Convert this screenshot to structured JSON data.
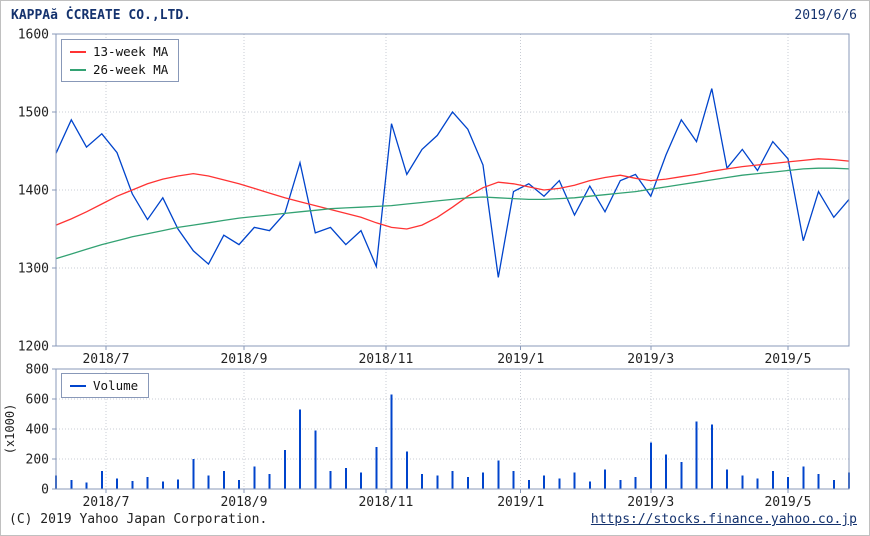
{
  "header": {
    "title": "KAPPAă ĊCREATE CO.,LTD.",
    "date": "2019/6/6"
  },
  "footer": {
    "copyright": "(C) 2019 Yahoo Japan Corporation.",
    "link": "https://stocks.finance.yahoo.co.jp"
  },
  "colors": {
    "price": "#0044cc",
    "ma13": "#ff3333",
    "ma26": "#33a273",
    "volume": "#0044cc",
    "axis": "#8898b8",
    "grid": "#c8ccd4",
    "label": "#222222",
    "title": "#14326e",
    "link": "#14326e"
  },
  "chart_data": [
    {
      "type": "line",
      "ylim": [
        1200,
        1600
      ],
      "yticks": [
        1200,
        1300,
        1400,
        1500,
        1600
      ],
      "grid": true,
      "legend_position": "top-left",
      "xticks": [
        {
          "label": "2018/7",
          "pos": 0.063
        },
        {
          "label": "2018/9",
          "pos": 0.237
        },
        {
          "label": "2018/11",
          "pos": 0.416
        },
        {
          "label": "2019/1",
          "pos": 0.586
        },
        {
          "label": "2019/3",
          "pos": 0.75
        },
        {
          "label": "2019/5",
          "pos": 0.923
        }
      ],
      "legend": [
        {
          "label": "13-week MA",
          "color": "#ff3333"
        },
        {
          "label": "26-week MA",
          "color": "#33a273"
        }
      ],
      "series": [
        {
          "name": "Close",
          "color": "#0044cc",
          "values": [
            1447,
            1490,
            1455,
            1472,
            1448,
            1395,
            1362,
            1390,
            1350,
            1322,
            1305,
            1342,
            1330,
            1352,
            1348,
            1370,
            1435,
            1345,
            1352,
            1330,
            1348,
            1302,
            1485,
            1420,
            1452,
            1470,
            1500,
            1478,
            1432,
            1288,
            1398,
            1408,
            1392,
            1412,
            1368,
            1405,
            1372,
            1412,
            1420,
            1392,
            1445,
            1490,
            1462,
            1530,
            1428,
            1452,
            1425,
            1462,
            1440,
            1335,
            1398,
            1365,
            1388
          ]
        },
        {
          "name": "13-week MA",
          "color": "#ff3333",
          "values": [
            1355,
            1363,
            1372,
            1382,
            1392,
            1400,
            1408,
            1414,
            1418,
            1421,
            1418,
            1413,
            1408,
            1402,
            1396,
            1390,
            1385,
            1380,
            1375,
            1370,
            1365,
            1358,
            1352,
            1350,
            1355,
            1365,
            1378,
            1392,
            1403,
            1410,
            1408,
            1404,
            1400,
            1402,
            1406,
            1412,
            1416,
            1419,
            1415,
            1412,
            1414,
            1417,
            1420,
            1424,
            1427,
            1430,
            1432,
            1434,
            1436,
            1438,
            1440,
            1439,
            1437
          ]
        },
        {
          "name": "26-week MA",
          "color": "#33a273",
          "values": [
            1312,
            1318,
            1324,
            1330,
            1335,
            1340,
            1344,
            1348,
            1352,
            1355,
            1358,
            1361,
            1364,
            1366,
            1368,
            1370,
            1372,
            1374,
            1376,
            1377,
            1378,
            1379,
            1380,
            1382,
            1384,
            1386,
            1388,
            1390,
            1391,
            1390,
            1389,
            1388,
            1388,
            1389,
            1390,
            1392,
            1394,
            1396,
            1398,
            1401,
            1404,
            1407,
            1410,
            1413,
            1416,
            1419,
            1421,
            1423,
            1425,
            1427,
            1428,
            1428,
            1427
          ]
        }
      ]
    },
    {
      "type": "bar",
      "ylabel": "(x1000)",
      "ylim": [
        0,
        800
      ],
      "yticks": [
        0,
        200,
        400,
        600,
        800
      ],
      "grid": true,
      "legend_position": "top-left",
      "xticks": [
        {
          "label": "2018/7",
          "pos": 0.063
        },
        {
          "label": "2018/9",
          "pos": 0.237
        },
        {
          "label": "2018/11",
          "pos": 0.416
        },
        {
          "label": "2019/1",
          "pos": 0.586
        },
        {
          "label": "2019/3",
          "pos": 0.75
        },
        {
          "label": "2019/5",
          "pos": 0.923
        }
      ],
      "legend": [
        {
          "label": "Volume",
          "color": "#0044cc"
        }
      ],
      "values": [
        90,
        60,
        45,
        120,
        70,
        55,
        80,
        50,
        65,
        200,
        90,
        120,
        60,
        150,
        100,
        260,
        530,
        390,
        120,
        140,
        110,
        280,
        630,
        250,
        100,
        90,
        120,
        80,
        110,
        190,
        120,
        60,
        90,
        70,
        110,
        50,
        130,
        60,
        80,
        310,
        230,
        180,
        450,
        430,
        130,
        90,
        70,
        120,
        80,
        150,
        100,
        60,
        110
      ]
    }
  ]
}
